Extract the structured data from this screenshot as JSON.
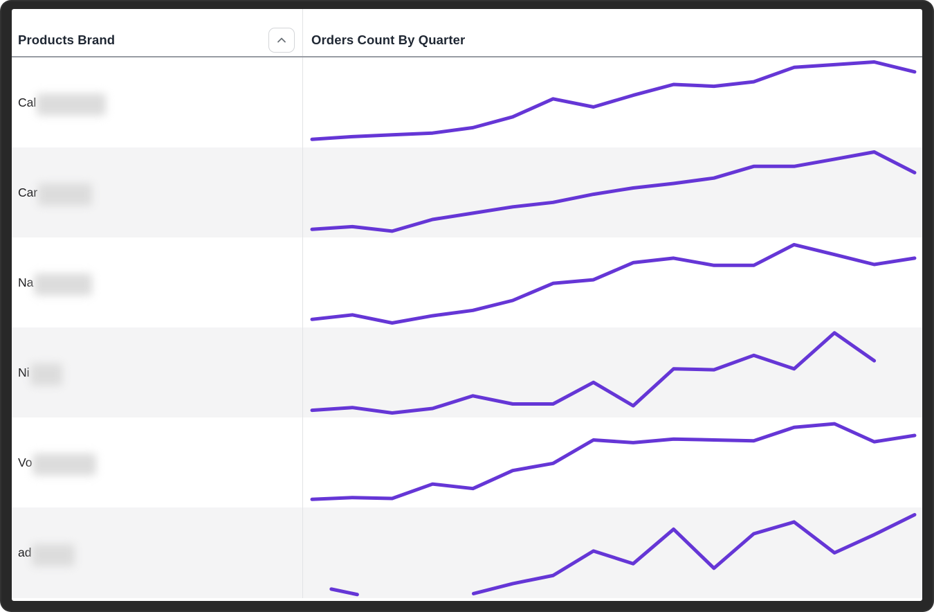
{
  "window": {
    "frame_color": "#282828",
    "content_background": "#ffffff"
  },
  "header": {
    "left_title": "Products Brand",
    "right_title": "Orders Count By Quarter",
    "sort_icon": "chevron-up-icon"
  },
  "colors": {
    "line": "#6536d6",
    "row_alt_bg": "#f4f4f5",
    "divider": "#e2e3e5",
    "header_border": "#979ca3",
    "header_text": "#1f2733",
    "cell_text": "#1d1d1f",
    "redact_fill": "#dcdcdc"
  },
  "rows": [
    {
      "brand_prefix": "Cal",
      "redacted": true,
      "redact_width": 100
    },
    {
      "brand_prefix": "Car",
      "redacted": true,
      "redact_width": 78
    },
    {
      "brand_prefix": "Na",
      "redacted": true,
      "redact_width": 84
    },
    {
      "brand_prefix": "Ni",
      "redacted": true,
      "redact_width": 46
    },
    {
      "brand_prefix": "Vo",
      "redacted": true,
      "redact_width": 92
    },
    {
      "brand_prefix": "ad",
      "redacted": true,
      "redact_width": 62
    }
  ],
  "chart_data": {
    "type": "line",
    "title": "Orders Count By Quarter",
    "xlabel": "quarter (16 quarterly periods, tick labels not shown)",
    "ylabel": "orders count (no axis shown; values are relative 0-100 estimates from sparkline heights)",
    "legend": "none (one sparkline per table row)",
    "grid": false,
    "ylim": [
      0,
      100
    ],
    "series": [
      {
        "name": "Cal (redacted)",
        "segments": [
          [
            [
              0,
              9
            ],
            [
              0.067,
              12
            ],
            [
              0.133,
              14
            ],
            [
              0.2,
              16
            ],
            [
              0.267,
              22
            ],
            [
              0.333,
              34
            ],
            [
              0.4,
              54
            ],
            [
              0.467,
              45
            ],
            [
              0.533,
              58
            ],
            [
              0.6,
              70
            ],
            [
              0.667,
              68
            ],
            [
              0.733,
              73
            ],
            [
              0.8,
              89
            ],
            [
              0.867,
              92
            ],
            [
              0.933,
              95
            ],
            [
              1,
              84
            ]
          ]
        ]
      },
      {
        "name": "Car (redacted)",
        "segments": [
          [
            [
              0,
              9
            ],
            [
              0.067,
              12
            ],
            [
              0.133,
              7
            ],
            [
              0.2,
              20
            ],
            [
              0.267,
              27
            ],
            [
              0.333,
              34
            ],
            [
              0.4,
              39
            ],
            [
              0.467,
              48
            ],
            [
              0.533,
              55
            ],
            [
              0.6,
              60
            ],
            [
              0.667,
              66
            ],
            [
              0.733,
              79
            ],
            [
              0.8,
              79
            ],
            [
              0.867,
              87
            ],
            [
              0.933,
              95
            ],
            [
              1,
              72
            ]
          ]
        ]
      },
      {
        "name": "Na (redacted)",
        "segments": [
          [
            [
              0,
              9
            ],
            [
              0.067,
              14
            ],
            [
              0.133,
              5
            ],
            [
              0.2,
              13
            ],
            [
              0.267,
              19
            ],
            [
              0.333,
              30
            ],
            [
              0.4,
              49
            ],
            [
              0.467,
              53
            ],
            [
              0.533,
              72
            ],
            [
              0.6,
              77
            ],
            [
              0.667,
              69
            ],
            [
              0.733,
              69
            ],
            [
              0.8,
              92
            ],
            [
              0.867,
              81
            ],
            [
              0.933,
              70
            ],
            [
              1,
              77
            ]
          ]
        ]
      },
      {
        "name": "Ni (redacted)",
        "segments": [
          [
            [
              0,
              8
            ],
            [
              0.067,
              11
            ],
            [
              0.133,
              5
            ],
            [
              0.2,
              10
            ],
            [
              0.267,
              24
            ],
            [
              0.333,
              15
            ],
            [
              0.4,
              15
            ],
            [
              0.467,
              39
            ],
            [
              0.533,
              13
            ],
            [
              0.6,
              54
            ],
            [
              0.667,
              53
            ],
            [
              0.733,
              69
            ],
            [
              0.8,
              54
            ],
            [
              0.867,
              94
            ],
            [
              0.933,
              63
            ]
          ]
        ]
      },
      {
        "name": "Vo (redacted)",
        "segments": [
          [
            [
              0,
              9
            ],
            [
              0.067,
              11
            ],
            [
              0.133,
              10
            ],
            [
              0.2,
              26
            ],
            [
              0.267,
              21
            ],
            [
              0.333,
              41
            ],
            [
              0.4,
              49
            ],
            [
              0.467,
              75
            ],
            [
              0.533,
              72
            ],
            [
              0.6,
              76
            ],
            [
              0.667,
              75
            ],
            [
              0.733,
              74
            ],
            [
              0.8,
              89
            ],
            [
              0.867,
              93
            ],
            [
              0.933,
              73
            ],
            [
              1,
              80
            ]
          ]
        ]
      },
      {
        "name": "ad (redacted)",
        "segments": [
          [
            [
              0.032,
              10
            ],
            [
              0.075,
              4
            ]
          ],
          [
            [
              0.268,
              5
            ],
            [
              0.333,
              16
            ],
            [
              0.4,
              25
            ],
            [
              0.467,
              52
            ],
            [
              0.533,
              38
            ],
            [
              0.6,
              76
            ],
            [
              0.667,
              33
            ],
            [
              0.733,
              71
            ],
            [
              0.8,
              84
            ],
            [
              0.867,
              50
            ],
            [
              0.933,
              70
            ],
            [
              1,
              92
            ]
          ]
        ]
      }
    ]
  }
}
